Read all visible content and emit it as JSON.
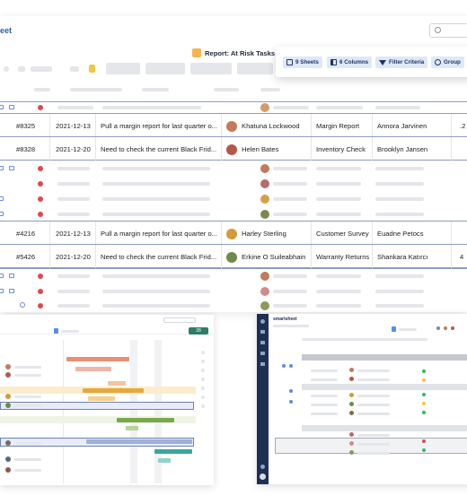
{
  "app": {
    "brand": "eet",
    "report_title": "Report: At Risk Tasks"
  },
  "filter_bar": {
    "sheets": "9 Sheets",
    "columns": "6 Columns",
    "filter": "Filter Criteria",
    "group": "Group"
  },
  "rows": [
    {
      "id": "#8325",
      "date": "2021-12-13",
      "task": "Pull a margin report for last quarter o...",
      "assignee": "Khatuna Lockwood",
      "type": "Margin Report",
      "owner": "Annora Jarvinen",
      "extra": ".2",
      "avatar_color": "#c27a5a"
    },
    {
      "id": "#8328",
      "date": "2021-12-20",
      "task": "Need to check the current Black Frid...",
      "assignee": "Helen Bates",
      "type": "Inventory Check",
      "owner": "Brooklyn Jansen",
      "extra": "",
      "avatar_color": "#b5574a"
    },
    {
      "id": "#4216",
      "date": "2021-12-13",
      "task": "Pull a margin report for last quarter o...",
      "assignee": "Harley Sterling",
      "type": "Customer Survey",
      "owner": "Euadne Petocs",
      "extra": "",
      "avatar_color": "#d19a3a"
    },
    {
      "id": "#5426",
      "date": "2021-12-20",
      "task": "Need to check the current Black Frid...",
      "assignee": "Erkine O Suileabhain",
      "type": "Warranty Returns",
      "owner": "Shankara Katırcı",
      "extra": "4",
      "avatar_color": "#6f8a4a"
    }
  ],
  "dark_window": {
    "brand": "smartsheet"
  },
  "gantt_window": {
    "tag": "28"
  },
  "colors": {
    "accent": "#1d3566",
    "chip_bg": "#dfe8f6",
    "status_red": "#e0484e",
    "nav_dark": "#1d2f52"
  }
}
